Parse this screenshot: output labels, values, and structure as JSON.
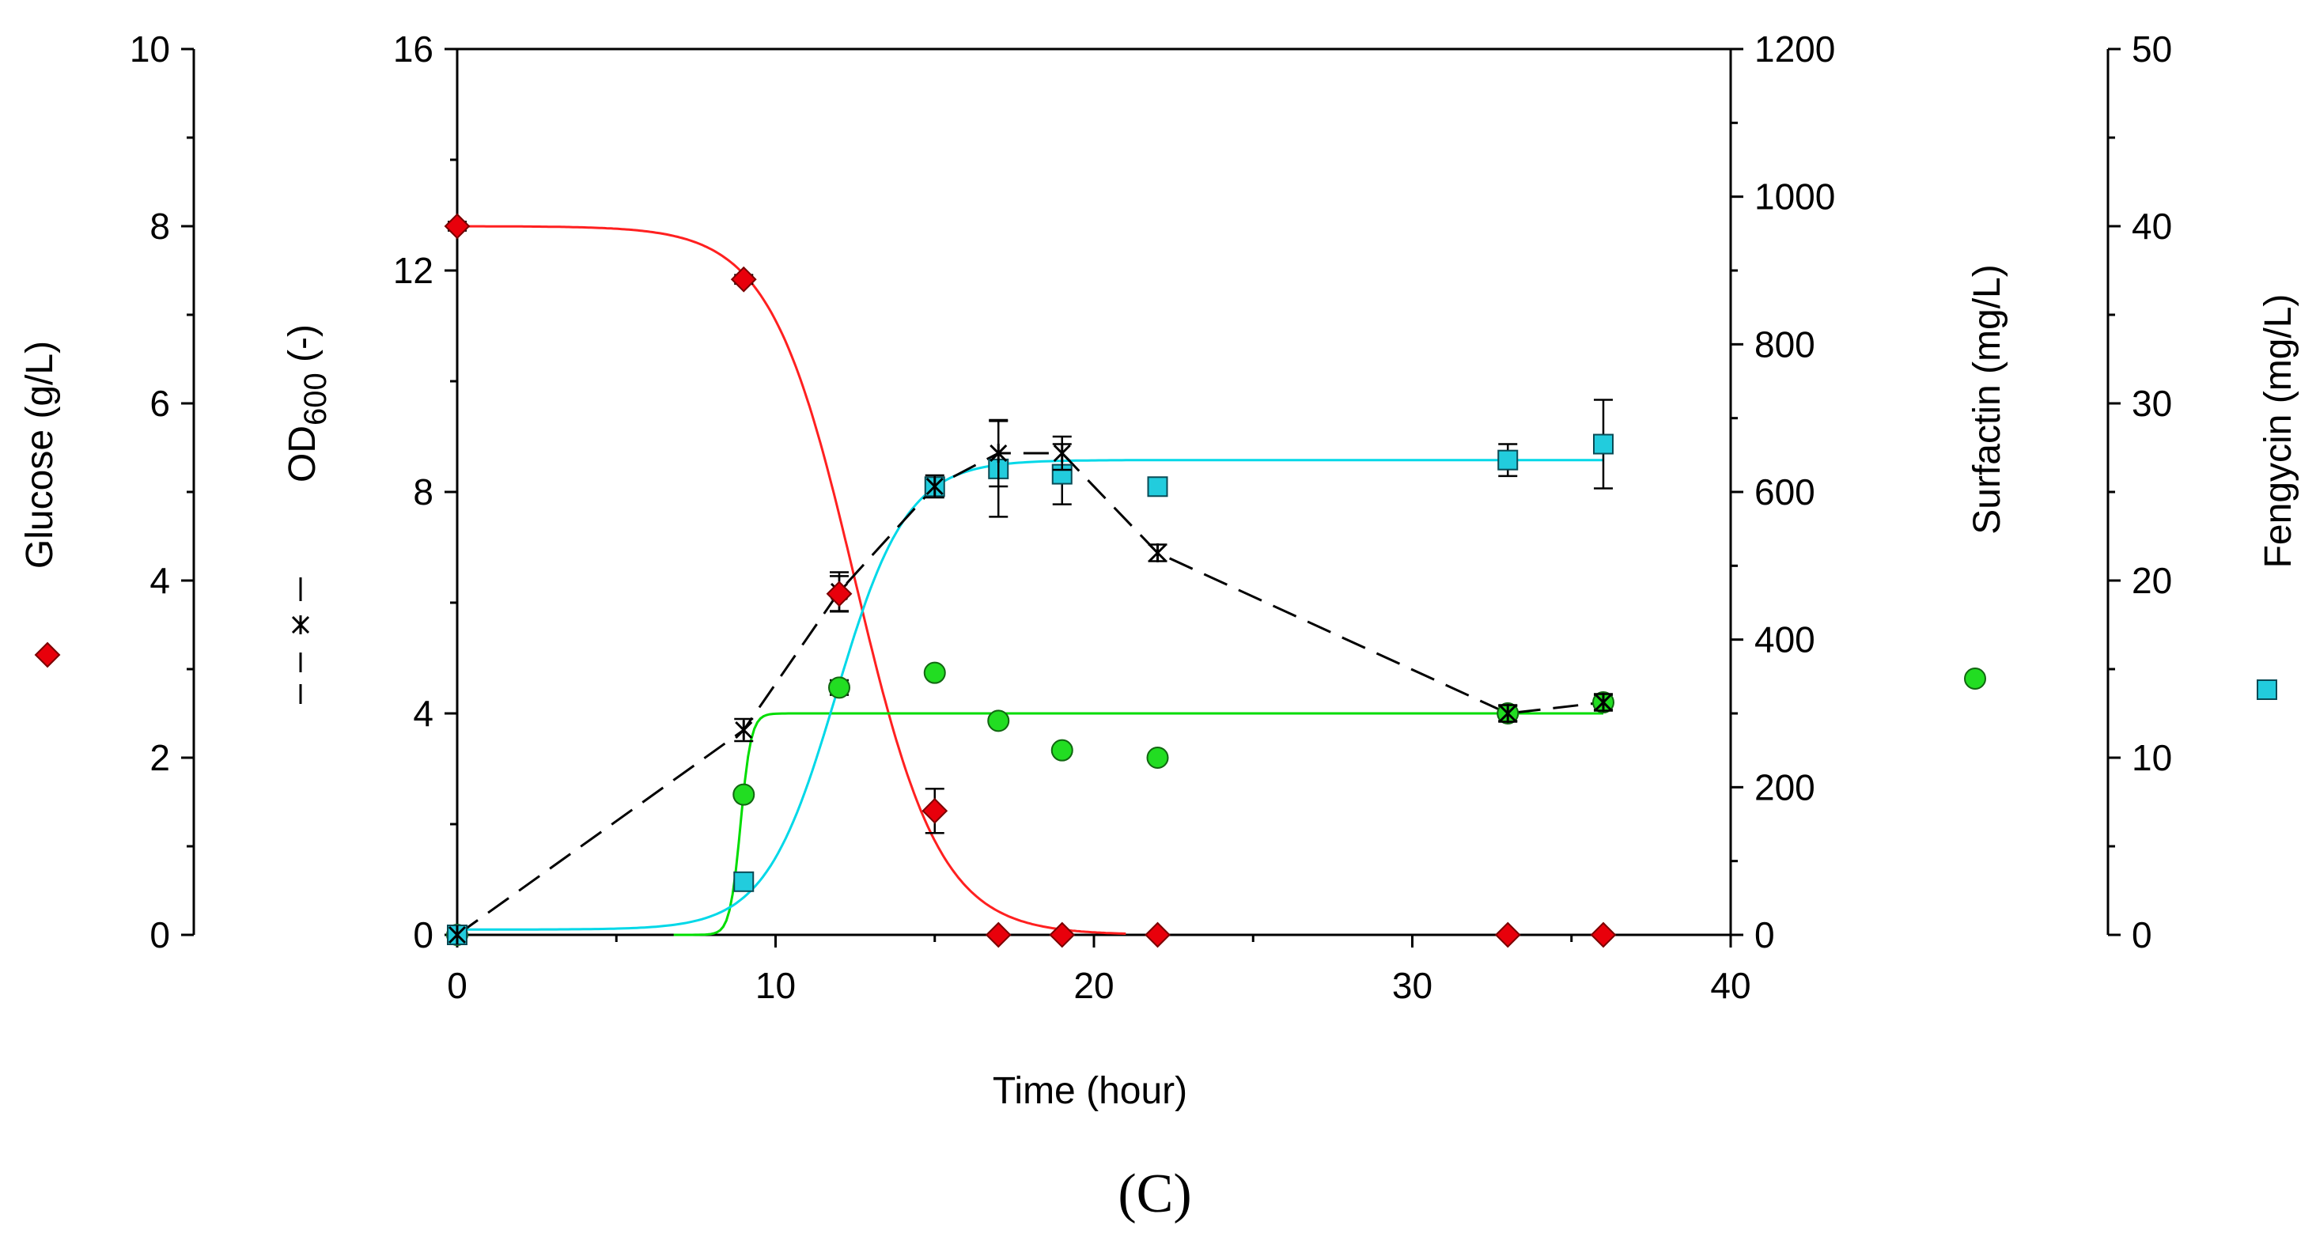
{
  "chart_data": {
    "type": "scatter",
    "panel_label": "(C)",
    "xlabel": "Time (hour)",
    "xlim": [
      0,
      40
    ],
    "xticks": [
      "0",
      "10",
      "20",
      "30",
      "40"
    ],
    "axes": {
      "glucose": {
        "label": "Glucose (g/L)",
        "ylim": [
          0,
          10
        ],
        "ticks": [
          "0",
          "2",
          "4",
          "6",
          "8",
          "10"
        ]
      },
      "od600": {
        "label_main": "OD",
        "label_sub": "600",
        "label_tail": " (-)",
        "ylim": [
          0,
          16
        ],
        "ticks": [
          "0",
          "4",
          "8",
          "12",
          "16"
        ]
      },
      "surfactin": {
        "label": "Surfactin (mg/L)",
        "ylim": [
          0,
          1200
        ],
        "ticks": [
          "0",
          "200",
          "400",
          "600",
          "800",
          "1000",
          "1200"
        ]
      },
      "fengycin": {
        "label": "Fengycin  (mg/L)",
        "ylim": [
          0,
          50
        ],
        "ticks": [
          "0",
          "10",
          "20",
          "30",
          "40",
          "50"
        ]
      }
    },
    "colors": {
      "glucose": "#e8000b",
      "glucose_edge": "#7a0000",
      "od600": "#000000",
      "surfactin": "#22dd22",
      "surfactin_edge": "#116611",
      "fengycin": "#22ccdd",
      "fengycin_edge": "#0a4a55",
      "glucose_fit": "#ff2020",
      "surfactin_fit": "#00dd00",
      "fengycin_fit": "#00d8e8"
    },
    "series": [
      {
        "name": "Glucose",
        "axis": "glucose",
        "marker": "diamond",
        "x": [
          0,
          9,
          12,
          15,
          17,
          19,
          22,
          33,
          36
        ],
        "y": [
          8.0,
          7.4,
          3.85,
          1.4,
          0,
          0,
          0,
          0,
          0
        ],
        "err": [
          0.05,
          0.05,
          0.2,
          0.25,
          0,
          0,
          0,
          0,
          0
        ]
      },
      {
        "name": "OD600",
        "axis": "od600",
        "marker": "star",
        "line": "dashed",
        "x": [
          0,
          9,
          12,
          15,
          17,
          19,
          22,
          33,
          36
        ],
        "y": [
          0,
          3.7,
          6.2,
          8.1,
          8.7,
          8.7,
          6.9,
          4.0,
          4.2
        ],
        "err": [
          0,
          0.2,
          0.35,
          0.2,
          0.6,
          0.3,
          0.15,
          0.15,
          0.15
        ]
      },
      {
        "name": "Surfactin",
        "axis": "surfactin",
        "marker": "circle",
        "x": [
          0,
          9,
          12,
          15,
          17,
          19,
          22,
          33,
          36
        ],
        "y": [
          0,
          190,
          335,
          355,
          290,
          250,
          240,
          300,
          315
        ],
        "err": [
          0,
          0,
          10,
          0,
          0,
          0,
          0,
          10,
          10
        ]
      },
      {
        "name": "Fengycin",
        "axis": "fengycin",
        "marker": "square",
        "x": [
          0,
          9,
          15,
          17,
          19,
          22,
          33,
          36
        ],
        "y": [
          0,
          3,
          25.3,
          26.3,
          26.0,
          25.3,
          26.8,
          27.7
        ],
        "err": [
          0,
          0,
          0.5,
          2.7,
          1.7,
          0.3,
          0.9,
          2.5
        ]
      }
    ],
    "fits": [
      {
        "name": "Glucose fit",
        "axis": "glucose",
        "color_key": "glucose_fit",
        "model": "logistic_decay",
        "top": 8.0,
        "mid": 12.5,
        "rate": 0.75,
        "x_from": 0,
        "x_to": 21
      },
      {
        "name": "Surfactin fit",
        "axis": "surfactin",
        "color_key": "surfactin_fit",
        "model": "logistic_growth",
        "top": 300,
        "mid": 8.9,
        "rate": 6.0,
        "x_from": 6.8,
        "x_to": 36
      },
      {
        "name": "Fengycin fit",
        "axis": "fengycin",
        "color_key": "fengycin_fit",
        "model": "logistic_growth",
        "base": 0.3,
        "top": 26.8,
        "mid": 11.9,
        "rate": 0.9,
        "x_from": 0,
        "x_to": 36
      }
    ]
  }
}
